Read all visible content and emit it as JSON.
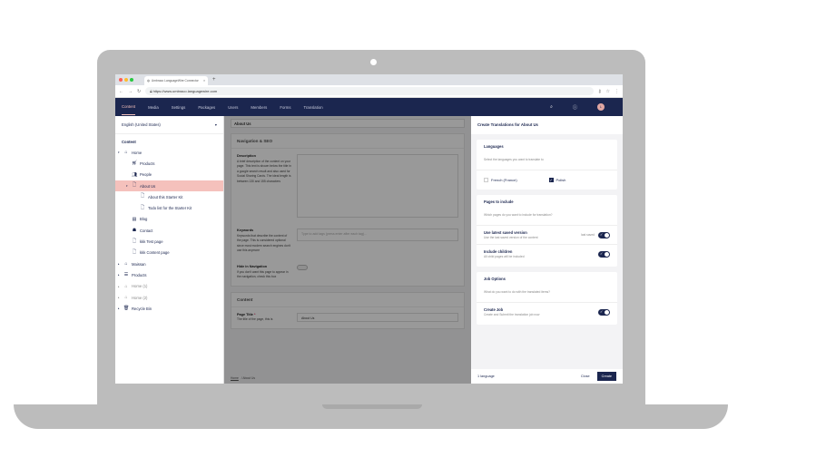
{
  "browser": {
    "tab_title": "Umbraco LanguageWire Connector",
    "url": "https://www.umbraco.languagewire.com"
  },
  "nav": {
    "items": [
      "Content",
      "Media",
      "Settings",
      "Packages",
      "Users",
      "Members",
      "Forms",
      "Translation"
    ],
    "avatar": "L"
  },
  "sidebar": {
    "language": "English (United States)",
    "section": "Content",
    "items": [
      {
        "label": "Home",
        "icon": "home-icon",
        "level": 0,
        "arrow": "▾"
      },
      {
        "label": "Products",
        "icon": "cart-icon",
        "level": 1
      },
      {
        "label": "People",
        "icon": "people-icon",
        "level": 1
      },
      {
        "label": "About Us",
        "icon": "document-icon",
        "level": 1,
        "arrow": "▾",
        "selected": true
      },
      {
        "label": "About this Starter Kit",
        "icon": "document-icon",
        "level": 2
      },
      {
        "label": "Todo list for the Starter Kit",
        "icon": "document-icon",
        "level": 2
      },
      {
        "label": "Blog",
        "icon": "blog-icon",
        "level": 1
      },
      {
        "label": "Contact",
        "icon": "contact-icon",
        "level": 1
      },
      {
        "label": "kkk Test page",
        "icon": "document-icon",
        "level": 1
      },
      {
        "label": "kkk Content page",
        "icon": "document-icon",
        "level": 1
      },
      {
        "label": "Maissan",
        "icon": "home-icon",
        "level": 0,
        "arrow": "▸"
      },
      {
        "label": "Products",
        "icon": "list-icon",
        "level": 0,
        "arrow": "▸"
      },
      {
        "label": "Home (1)",
        "icon": "home-icon",
        "level": 0,
        "arrow": "▸",
        "dim": true
      },
      {
        "label": "Home (2)",
        "icon": "home-icon",
        "level": 0,
        "arrow": "▸",
        "dim": true
      },
      {
        "label": "Recycle Bin",
        "icon": "trash-icon",
        "level": 0,
        "arrow": "▸"
      }
    ]
  },
  "editor": {
    "name": "About Us",
    "nav_seo": {
      "title": "Navigation & SEO",
      "description_label": "Description",
      "description_help": "A brief description of the content on your page. This text is shown below the title in a google search result and also used for Social Sharing Cards. The ideal length is between 130 and 155 characters",
      "keywords_label": "Keywords",
      "keywords_help": "Keywords that describe the content of the page. This is considered optional since most modern search engines don't use this anymore",
      "keywords_placeholder": "Type to add tags (press enter after each tag)...",
      "hide_label": "Hide in Navigation",
      "hide_help": "If you don't want this page to appear in the navigation, check this box"
    },
    "content": {
      "title": "Content",
      "page_title_label": "Page Title",
      "required": "*",
      "page_title_help": "The title of the page, this is",
      "page_title_value": "About Us"
    },
    "breadcrumb": [
      "Home",
      "/",
      "About Us"
    ]
  },
  "panel": {
    "title": "Create Translations for About Us",
    "languages": {
      "title": "Languages",
      "subtitle": "Select the languages you want to translate to",
      "options": [
        {
          "label": "French (France)",
          "checked": false
        },
        {
          "label": "Polish",
          "checked": true
        }
      ]
    },
    "pages": {
      "title": "Pages to include",
      "subtitle": "Which pages do you want to include for translation?",
      "latest": {
        "label": "Use latest saved version",
        "desc": "Use the last saved version of the content",
        "status": "last saved",
        "on": true
      },
      "children": {
        "label": "Include children",
        "desc": "All child pages will be included",
        "on": true
      }
    },
    "job": {
      "title": "Job Options",
      "subtitle": "What do you want to do with the translated items?",
      "create": {
        "label": "Create Job",
        "desc": "Create and Submit the translation job now",
        "on": true
      }
    },
    "footer": {
      "count": "1 language",
      "close": "Close",
      "create": "Create"
    }
  },
  "colors": {
    "brand": "#1b264f",
    "selected": "#f5c1bc"
  }
}
